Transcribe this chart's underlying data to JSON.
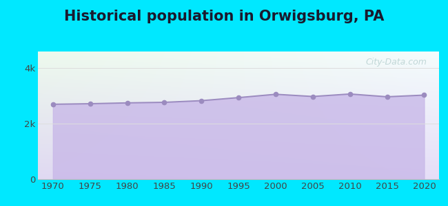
{
  "title": "Historical population in Orwigsburg, PA",
  "years": [
    1970,
    1975,
    1980,
    1985,
    1990,
    1995,
    2000,
    2005,
    2010,
    2015,
    2020
  ],
  "population": [
    2700,
    2720,
    2750,
    2770,
    2830,
    2940,
    3060,
    2980,
    3070,
    2970,
    3030
  ],
  "line_color": "#9b8bbf",
  "fill_color": "#c8b8e8",
  "fill_alpha": 0.8,
  "marker_color": "#9b8bbf",
  "marker_size": 4.5,
  "bg_outer": "#00e8ff",
  "title_fontsize": 15,
  "title_fontweight": "bold",
  "title_color": "#1a1a2e",
  "ytick_labels": [
    "0",
    "2k",
    "4k"
  ],
  "ytick_values": [
    0,
    2000,
    4000
  ],
  "ylim": [
    0,
    4600
  ],
  "xlim": [
    1968,
    2022
  ],
  "grid_color": "#dddddd",
  "watermark_text": "City-Data.com",
  "watermark_color": "#99bbbb",
  "watermark_alpha": 0.55,
  "tick_color": "#444444",
  "tick_fontsize": 9.5
}
